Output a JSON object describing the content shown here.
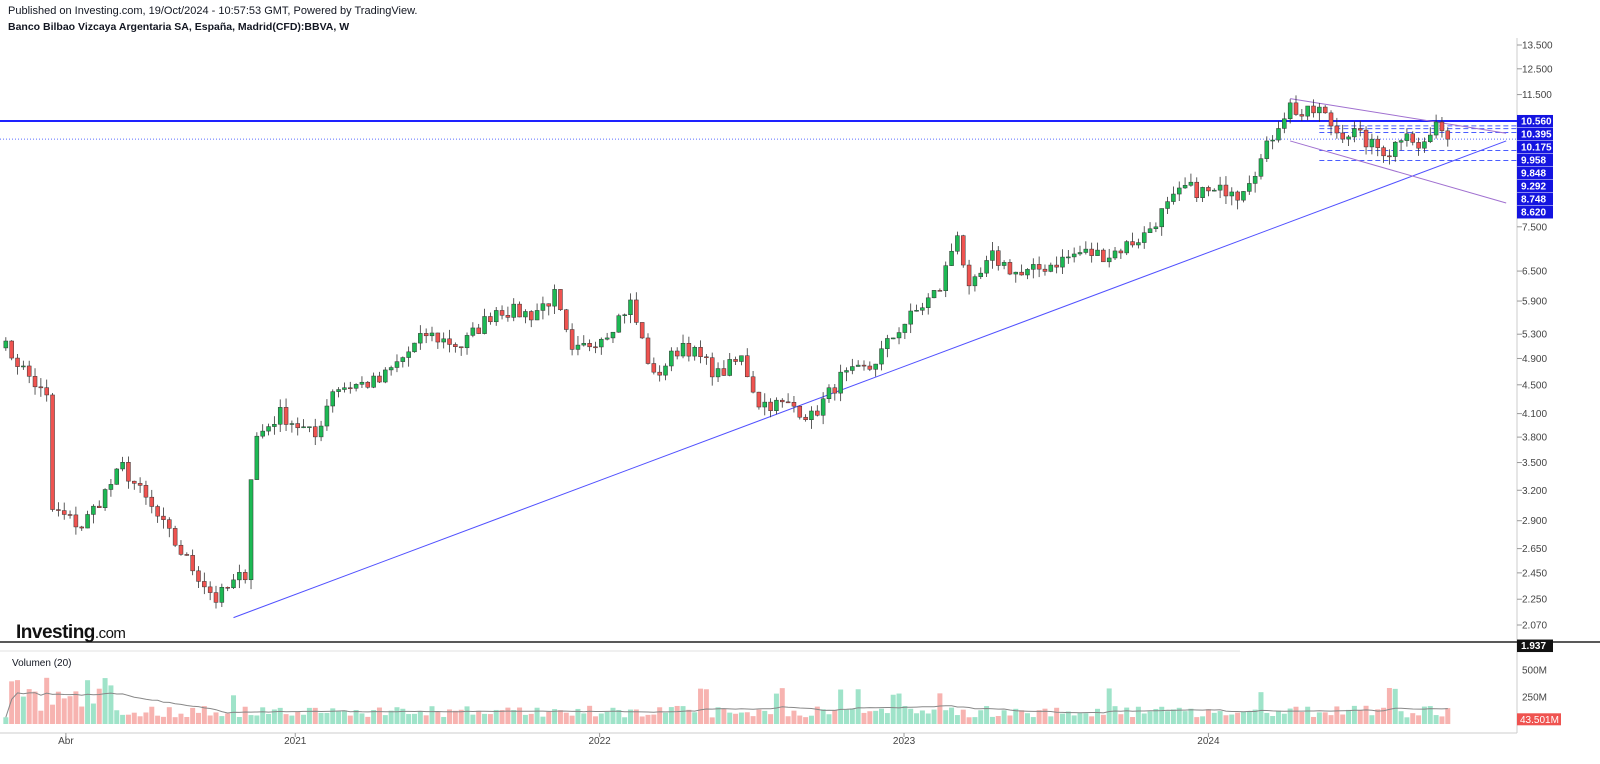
{
  "header": {
    "published": "Published on Investing.com, 19/Oct/2024 - 10:57:53 GMT, Powered by TradingView.",
    "symbol": "Banco Bilbao Vizcaya Argentaria SA, España, Madrid(CFD):BBVA, W"
  },
  "logo": {
    "text": "Investing",
    "domain": ".com"
  },
  "colors": {
    "up": "#26a69a",
    "up_fill": "#1db954",
    "down": "#ef5350",
    "level_line": "#1e22ff",
    "trend_line": "#5050ff",
    "channel_line": "#a070d0",
    "vol_up": "#9fe3c9",
    "vol_down": "#f7b3b0",
    "vol_ma": "#888888"
  },
  "chart_data": {
    "type": "candlestick",
    "title": "Banco Bilbao Vizcaya Argentaria SA, España, Madrid(CFD):BBVA, W",
    "interval": "weekly",
    "y_scale": "log",
    "y_ticks": [
      2.07,
      2.25,
      2.45,
      2.65,
      2.9,
      3.2,
      3.5,
      3.8,
      4.1,
      4.5,
      4.9,
      5.3,
      5.9,
      6.5,
      7.5,
      11.5,
      12.5,
      13.5
    ],
    "y_tick_labels": [
      "2.070",
      "2.250",
      "2.450",
      "2.650",
      "2.900",
      "3.200",
      "3.500",
      "3.800",
      "4.100",
      "4.500",
      "4.900",
      "5.300",
      "5.900",
      "6.500",
      "7.500",
      "11.500",
      "12.500",
      "13.500"
    ],
    "x_labels": [
      {
        "label": "Abr",
        "date": "2020-04-01"
      },
      {
        "label": "2021",
        "date": "2021-01-01"
      },
      {
        "label": "2022",
        "date": "2022-01-01"
      },
      {
        "label": "2023",
        "date": "2023-01-01"
      },
      {
        "label": "2024",
        "date": "2024-01-01"
      }
    ],
    "x_range": [
      "2020-01-13",
      "2024-12-30"
    ],
    "price_labels": [
      {
        "value": 10.56,
        "text": "10.560"
      },
      {
        "value": 10.395,
        "text": "10.395"
      },
      {
        "value": 10.175,
        "text": "10.175"
      },
      {
        "value": 9.958,
        "text": "9.958"
      },
      {
        "value": 9.848,
        "text": "9.848"
      },
      {
        "value": 9.292,
        "text": "9.292"
      },
      {
        "value": 8.748,
        "text": "8.748"
      },
      {
        "value": 8.62,
        "text": "8.620"
      },
      {
        "value": 1.937,
        "text": "1.937"
      }
    ],
    "horizontal_levels": [
      10.56,
      9.958
    ],
    "dashed_levels": [
      10.395,
      10.3,
      10.175,
      9.6,
      9.292
    ],
    "trendlines": [
      {
        "name": "support",
        "from": [
          "2020-10-19",
          2.12
        ],
        "to": [
          "2024-12-23",
          9.9
        ]
      },
      {
        "name": "channel-upper",
        "from": [
          "2024-04-08",
          11.35
        ],
        "to": [
          "2024-12-23",
          10.15
        ]
      },
      {
        "name": "channel-lower",
        "from": [
          "2024-04-08",
          9.9
        ],
        "to": [
          "2024-12-23",
          8.1
        ]
      }
    ],
    "anchors": [
      {
        "date": "2020-01-13",
        "value": 5.2
      },
      {
        "date": "2020-03-09",
        "value": 4.3
      },
      {
        "date": "2020-03-16",
        "value": 3.0
      },
      {
        "date": "2020-04-20",
        "value": 2.85
      },
      {
        "date": "2020-06-08",
        "value": 3.45
      },
      {
        "date": "2020-07-06",
        "value": 3.1
      },
      {
        "date": "2020-08-24",
        "value": 2.55
      },
      {
        "date": "2020-09-28",
        "value": 2.25
      },
      {
        "date": "2020-11-02",
        "value": 2.45
      },
      {
        "date": "2020-11-09",
        "value": 3.35
      },
      {
        "date": "2020-11-16",
        "value": 3.8
      },
      {
        "date": "2020-12-14",
        "value": 4.1
      },
      {
        "date": "2021-01-25",
        "value": 3.8
      },
      {
        "date": "2021-02-15",
        "value": 4.45
      },
      {
        "date": "2021-04-12",
        "value": 4.55
      },
      {
        "date": "2021-06-07",
        "value": 5.3
      },
      {
        "date": "2021-07-19",
        "value": 5.1
      },
      {
        "date": "2021-08-30",
        "value": 5.75
      },
      {
        "date": "2021-10-11",
        "value": 5.65
      },
      {
        "date": "2021-11-08",
        "value": 6.0
      },
      {
        "date": "2021-11-29",
        "value": 4.95
      },
      {
        "date": "2022-01-10",
        "value": 5.35
      },
      {
        "date": "2022-02-07",
        "value": 5.85
      },
      {
        "date": "2022-03-07",
        "value": 4.6
      },
      {
        "date": "2022-04-11",
        "value": 5.15
      },
      {
        "date": "2022-05-23",
        "value": 4.65
      },
      {
        "date": "2022-06-20",
        "value": 4.9
      },
      {
        "date": "2022-07-11",
        "value": 4.25
      },
      {
        "date": "2022-08-22",
        "value": 4.2
      },
      {
        "date": "2022-09-12",
        "value": 4.05
      },
      {
        "date": "2022-10-17",
        "value": 4.6
      },
      {
        "date": "2022-11-21",
        "value": 4.75
      },
      {
        "date": "2022-12-26",
        "value": 5.4
      },
      {
        "date": "2023-02-13",
        "value": 6.15
      },
      {
        "date": "2023-03-06",
        "value": 7.4
      },
      {
        "date": "2023-03-20",
        "value": 6.05
      },
      {
        "date": "2023-04-17",
        "value": 6.8
      },
      {
        "date": "2023-05-22",
        "value": 6.4
      },
      {
        "date": "2023-07-31",
        "value": 6.9
      },
      {
        "date": "2023-09-04",
        "value": 6.85
      },
      {
        "date": "2023-10-16",
        "value": 7.3
      },
      {
        "date": "2023-11-06",
        "value": 7.85
      },
      {
        "date": "2023-12-04",
        "value": 8.5
      },
      {
        "date": "2024-01-08",
        "value": 8.35
      },
      {
        "date": "2024-01-29",
        "value": 8.55
      },
      {
        "date": "2024-02-05",
        "value": 8.35
      },
      {
        "date": "2024-03-04",
        "value": 9.3
      },
      {
        "date": "2024-03-25",
        "value": 10.5
      },
      {
        "date": "2024-04-08",
        "value": 11.1
      },
      {
        "date": "2024-04-22",
        "value": 10.75
      },
      {
        "date": "2024-05-13",
        "value": 10.95
      },
      {
        "date": "2024-06-03",
        "value": 10.2
      },
      {
        "date": "2024-06-24",
        "value": 10.15
      },
      {
        "date": "2024-07-15",
        "value": 9.75
      },
      {
        "date": "2024-08-05",
        "value": 9.55
      },
      {
        "date": "2024-08-26",
        "value": 10.35
      },
      {
        "date": "2024-09-09",
        "value": 9.6
      },
      {
        "date": "2024-09-23",
        "value": 10.1
      },
      {
        "date": "2024-10-07",
        "value": 10.45
      },
      {
        "date": "2024-10-14",
        "value": 9.958
      }
    ],
    "volume_indicator": {
      "title": "Volumen (20)",
      "y_ticks": [
        250,
        500
      ],
      "y_tick_labels": [
        "250M",
        "500M"
      ],
      "last_value": "43.501M",
      "unit": "M"
    }
  }
}
